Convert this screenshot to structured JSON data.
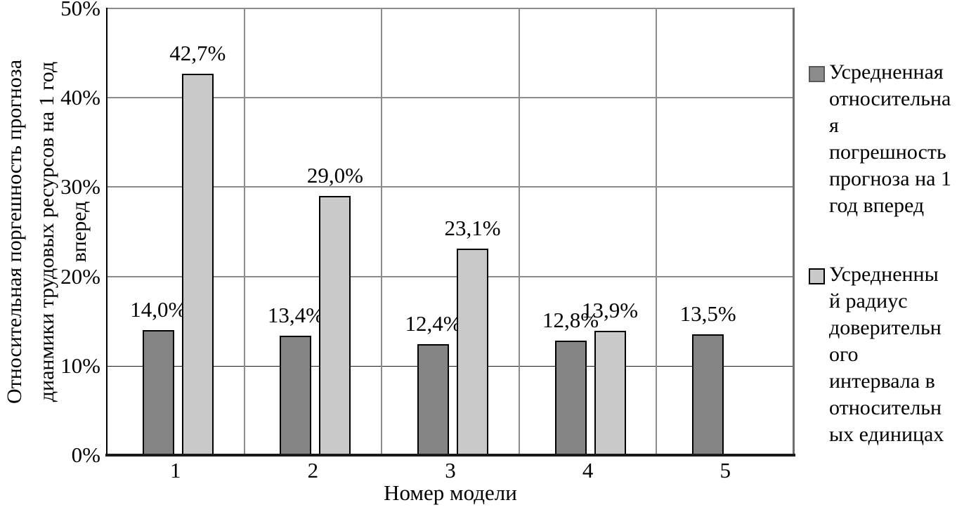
{
  "chart_data": {
    "type": "bar",
    "title": "",
    "categories": [
      "1",
      "2",
      "3",
      "4",
      "5"
    ],
    "x_axis_label": "Номер модели",
    "y_axis_label": "Относительная поргешность прогноза дианмики трудовых ресурсов на 1 год вперед",
    "y_axis_label_lines": [
      "Относительная поргешность прогноза",
      "дианмики трудовых ресурсов на 1 год",
      "вперед"
    ],
    "ylim": [
      0,
      50
    ],
    "y_ticks": [
      {
        "label": "0%",
        "value": 0
      },
      {
        "label": "10%",
        "value": 10
      },
      {
        "label": "20%",
        "value": 20
      },
      {
        "label": "30%",
        "value": 30
      },
      {
        "label": "40%",
        "value": 40
      },
      {
        "label": "50%",
        "value": 50
      }
    ],
    "grid": true,
    "legend_position": "right",
    "series": [
      {
        "name": "Усредненная относительная погрешность прогноза на 1 год вперед",
        "color": "#848484",
        "border_color": "#000000",
        "values": [
          14.0,
          13.4,
          12.4,
          12.8,
          13.5
        ],
        "data_labels": [
          "14,0%",
          "13,4%",
          "12,4%",
          "12,8%",
          "13,5%"
        ]
      },
      {
        "name": "Усредненный радиус доверительного интервала в относительных единицах",
        "color": "#c9c9c9",
        "border_color": "#000000",
        "values": [
          42.7,
          29.0,
          23.1,
          13.9,
          null
        ],
        "data_labels": [
          "42,7%",
          "29,0%",
          "23,1%",
          "13,9%",
          null
        ]
      }
    ]
  },
  "legend": {
    "items": [
      {
        "series_index": 0,
        "marker_color": "#8c8c8c",
        "marker_border": "#595959",
        "lines": [
          "Усредненная",
          "относительна",
          "я",
          "погрешность",
          "прогноза на 1",
          "год вперед"
        ]
      },
      {
        "series_index": 1,
        "marker_color": "#c9c9c9",
        "marker_border": "#000000",
        "lines": [
          "Усредненны",
          "й радиус",
          "доверительн",
          "ого",
          "интервала в",
          "относительн",
          "ых единицах"
        ]
      }
    ]
  },
  "colors": {
    "gridline": "#8c8c8c",
    "minor_axis_line": "#1a1a1a",
    "axis": "#000000",
    "background": "#ffffff"
  }
}
